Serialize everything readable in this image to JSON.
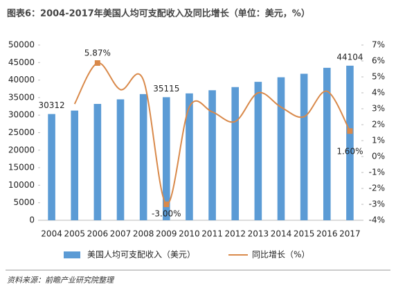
{
  "chart_data": {
    "type": "bar-line",
    "title": "图表6：2004-2017年美国人均可支配收入及同比增长（单位：美元，%）",
    "source": "资料来源：前瞻产业研究院整理",
    "categories": [
      "2004",
      "2005",
      "2006",
      "2007",
      "2008",
      "2009",
      "2010",
      "2011",
      "2012",
      "2013",
      "2014",
      "2015",
      "2016",
      "2017"
    ],
    "series": [
      {
        "name": "美国人均可支配收入（美元）",
        "type": "bar",
        "color": "#5b9bd5",
        "values": [
          30312,
          31300,
          33200,
          34500,
          36000,
          35115,
          36200,
          37100,
          38000,
          39500,
          40800,
          41800,
          43500,
          44104
        ],
        "value_labels": [
          "30312",
          null,
          null,
          null,
          null,
          "35115",
          null,
          null,
          null,
          null,
          null,
          null,
          null,
          "44104"
        ]
      },
      {
        "name": "同比增长（%）",
        "type": "line",
        "axis": "y2",
        "color": "#d9894a",
        "values": [
          null,
          3.3,
          5.87,
          4.2,
          4.8,
          -3.0,
          3.1,
          2.8,
          2.2,
          4.0,
          3.1,
          2.5,
          4.1,
          1.6
        ],
        "value_labels": [
          null,
          null,
          "5.87%",
          null,
          null,
          "-3.00%",
          null,
          null,
          null,
          null,
          null,
          null,
          null,
          "1.60%"
        ]
      }
    ],
    "ylim": [
      0,
      50000
    ],
    "yticks": [
      0,
      5000,
      10000,
      15000,
      20000,
      25000,
      30000,
      35000,
      40000,
      45000,
      50000
    ],
    "y2lim": [
      -4,
      7
    ],
    "y2ticks": [
      {
        "value": -4,
        "label": "-4%"
      },
      {
        "value": -3,
        "label": "-3%"
      },
      {
        "value": -2,
        "label": "-2%"
      },
      {
        "value": -1,
        "label": "-1%"
      },
      {
        "value": 0,
        "label": "0%"
      },
      {
        "value": 1,
        "label": "1%"
      },
      {
        "value": 2,
        "label": "2%"
      },
      {
        "value": 3,
        "label": "3%"
      },
      {
        "value": 4,
        "label": "4%"
      },
      {
        "value": 5,
        "label": "5%"
      },
      {
        "value": 6,
        "label": "6%"
      },
      {
        "value": 7,
        "label": "7%"
      }
    ],
    "legend": "bottom"
  }
}
